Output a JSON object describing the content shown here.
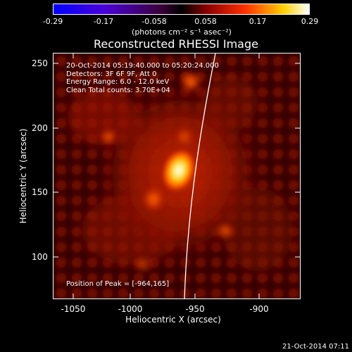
{
  "colorbar": {
    "tick_labels": [
      "-0.29",
      "-0.17",
      "-0.058",
      "0.058",
      "0.17",
      "0.29"
    ],
    "units": "(photons cm⁻² s⁻¹ asec⁻²)"
  },
  "title": "Reconstructed RHESSI Image",
  "info": {
    "time_range": "20-Oct-2014 05:19:40.000 to 05:20:24.000",
    "detectors": "Detectors: 3F 6F 9F, Att 0",
    "energy": "Energy Range: 6.0 - 12.0 keV",
    "clean": "Clean    Total counts: 3.70E+04",
    "peak": "Position of Peak = [-964,165]"
  },
  "axes": {
    "x_title": "Heliocentric X (arcsec)",
    "y_title": "Heliocentric Y (arcsec)",
    "x_ticks": [
      "-1050",
      "-1000",
      "-950",
      "-900"
    ],
    "y_ticks": [
      "250",
      "200",
      "150",
      "100"
    ]
  },
  "stamp": "21-Oct-2014 07:11",
  "colors": {
    "background": "#000000",
    "foreground": "#ffffff"
  }
}
